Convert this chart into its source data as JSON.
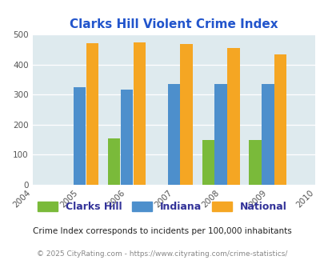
{
  "title": "Clarks Hill Violent Crime Index",
  "all_years": [
    2004,
    2005,
    2006,
    2007,
    2008,
    2009,
    2010
  ],
  "bar_years": [
    2005,
    2006,
    2007,
    2008,
    2009
  ],
  "clarks_hill": [
    0,
    155,
    0,
    148,
    148
  ],
  "indiana": [
    325,
    315,
    335,
    335,
    335
  ],
  "national": [
    470,
    473,
    467,
    455,
    433
  ],
  "color_clarks": "#7aba3a",
  "color_indiana": "#4d8fcc",
  "color_national": "#f5a623",
  "bg_color": "#deeaee",
  "ylim": [
    0,
    500
  ],
  "yticks": [
    0,
    100,
    200,
    300,
    400,
    500
  ],
  "footnote1": "Crime Index corresponds to incidents per 100,000 inhabitants",
  "footnote2": "© 2025 CityRating.com - https://www.cityrating.com/crime-statistics/",
  "title_color": "#2255cc",
  "legend_labels": [
    "Clarks Hill",
    "Indiana",
    "National"
  ],
  "legend_label_color": "#333399",
  "footnote1_color": "#222222",
  "footnote2_color": "#888888"
}
